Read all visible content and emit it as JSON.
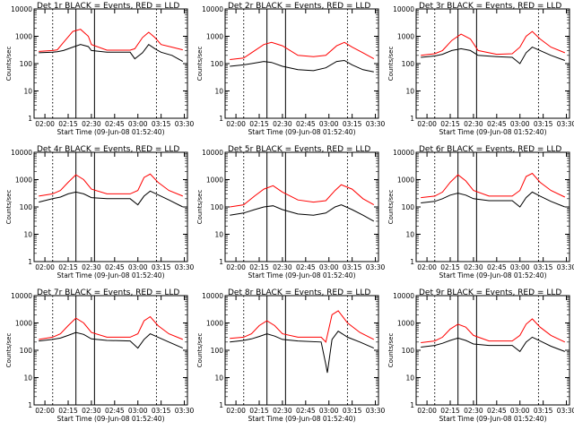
{
  "chart_data": [
    {
      "type": "line",
      "title": "Det 1r BLACK = Events, RED = LLD",
      "ylabel": "Counts/sec",
      "xlabel": "Start Time (09-Jun-08 01:52:40)",
      "x_ticks": [
        "02:00",
        "02:15",
        "02:30",
        "02:45",
        "03:00",
        "03:15",
        "03:30"
      ],
      "y_ticks": [
        "1",
        "10",
        "100",
        "1000",
        "10000"
      ],
      "ylim": [
        1,
        10000
      ],
      "y_scale": "log",
      "series": [
        {
          "name": "RED = LLD",
          "color": "#ff0000",
          "x": [
            "01:56",
            "02:05",
            "02:08",
            "02:12",
            "02:18",
            "02:23",
            "02:28",
            "02:30",
            "02:40",
            "02:55",
            "02:58",
            "03:03",
            "03:07",
            "03:11",
            "03:15",
            "03:22",
            "03:29"
          ],
          "values": [
            280,
            300,
            320,
            600,
            1500,
            1800,
            1000,
            500,
            310,
            310,
            350,
            900,
            1400,
            900,
            500,
            400,
            320
          ]
        },
        {
          "name": "BLACK = Events",
          "color": "#000000",
          "x": [
            "01:56",
            "02:05",
            "02:08",
            "02:12",
            "02:18",
            "02:23",
            "02:28",
            "02:30",
            "02:40",
            "02:55",
            "02:58",
            "03:03",
            "03:07",
            "03:11",
            "03:15",
            "03:22",
            "03:29"
          ],
          "values": [
            250,
            260,
            270,
            300,
            400,
            500,
            420,
            300,
            260,
            260,
            150,
            250,
            500,
            350,
            260,
            200,
            120
          ]
        }
      ]
    },
    {
      "type": "line",
      "title": "Det 2r BLACK = Events, RED = LLD",
      "ylabel": "Counts/sec",
      "xlabel": "Start Time (09-Jun-08 01:52:40)",
      "x_ticks": [
        "02:00",
        "02:15",
        "02:30",
        "02:45",
        "03:00",
        "03:15",
        "03:30"
      ],
      "y_ticks": [
        "1",
        "10",
        "100",
        "1000",
        "10000"
      ],
      "ylim": [
        1,
        10000
      ],
      "y_scale": "log",
      "series": [
        {
          "name": "RED = LLD",
          "color": "#ff0000",
          "x": [
            "01:56",
            "02:05",
            "02:10",
            "02:18",
            "02:23",
            "02:30",
            "02:40",
            "02:50",
            "02:58",
            "03:05",
            "03:10",
            "03:15",
            "03:22",
            "03:29"
          ],
          "values": [
            140,
            160,
            250,
            500,
            600,
            450,
            200,
            180,
            200,
            450,
            600,
            400,
            250,
            150
          ]
        },
        {
          "name": "BLACK = Events",
          "color": "#000000",
          "x": [
            "01:56",
            "02:05",
            "02:10",
            "02:18",
            "02:23",
            "02:30",
            "02:40",
            "02:50",
            "02:58",
            "03:05",
            "03:10",
            "03:15",
            "03:22",
            "03:29"
          ],
          "values": [
            80,
            90,
            100,
            120,
            110,
            80,
            60,
            55,
            70,
            120,
            130,
            90,
            60,
            50
          ]
        }
      ]
    },
    {
      "type": "line",
      "title": "Det 3r BLACK = Events, RED = LLD",
      "ylabel": "Counts/sec",
      "xlabel": "Start Time (09-Jun-08 01:52:40)",
      "x_ticks": [
        "02:00",
        "02:15",
        "02:30",
        "02:45",
        "03:00",
        "03:15",
        "03:30"
      ],
      "y_ticks": [
        "1",
        "10",
        "100",
        "1000",
        "10000"
      ],
      "ylim": [
        1,
        10000
      ],
      "y_scale": "log",
      "series": [
        {
          "name": "RED = LLD",
          "color": "#ff0000",
          "x": [
            "01:56",
            "02:05",
            "02:10",
            "02:16",
            "02:22",
            "02:28",
            "02:33",
            "02:45",
            "02:55",
            "03:00",
            "03:04",
            "03:08",
            "03:13",
            "03:20",
            "03:29"
          ],
          "values": [
            200,
            230,
            300,
            700,
            1200,
            800,
            300,
            220,
            230,
            400,
            1000,
            1500,
            800,
            400,
            250
          ]
        },
        {
          "name": "BLACK = Events",
          "color": "#000000",
          "x": [
            "01:56",
            "02:05",
            "02:10",
            "02:16",
            "02:22",
            "02:28",
            "02:33",
            "02:45",
            "02:55",
            "03:00",
            "03:04",
            "03:08",
            "03:13",
            "03:20",
            "03:29"
          ],
          "values": [
            170,
            190,
            220,
            300,
            350,
            300,
            200,
            180,
            170,
            100,
            250,
            400,
            300,
            200,
            130
          ]
        }
      ]
    },
    {
      "type": "line",
      "title": "Det 4r BLACK = Events, RED = LLD",
      "ylabel": "Counts/sec",
      "xlabel": "Start Time (09-Jun-08 01:52:40)",
      "x_ticks": [
        "02:00",
        "02:15",
        "02:30",
        "02:45",
        "03:00",
        "03:15",
        "03:30"
      ],
      "y_ticks": [
        "1",
        "10",
        "100",
        "1000",
        "10000"
      ],
      "ylim": [
        1,
        10000
      ],
      "y_scale": "log",
      "series": [
        {
          "name": "RED = LLD",
          "color": "#ff0000",
          "x": [
            "01:56",
            "02:05",
            "02:10",
            "02:15",
            "02:20",
            "02:25",
            "02:30",
            "02:40",
            "02:55",
            "03:00",
            "03:04",
            "03:08",
            "03:13",
            "03:20",
            "03:29"
          ],
          "values": [
            250,
            300,
            400,
            800,
            1500,
            1000,
            450,
            300,
            300,
            400,
            1200,
            1600,
            800,
            400,
            250
          ]
        },
        {
          "name": "BLACK = Events",
          "color": "#000000",
          "x": [
            "01:56",
            "02:05",
            "02:10",
            "02:15",
            "02:20",
            "02:25",
            "02:30",
            "02:40",
            "02:55",
            "03:00",
            "03:04",
            "03:08",
            "03:13",
            "03:20",
            "03:29"
          ],
          "values": [
            150,
            200,
            230,
            300,
            350,
            300,
            220,
            200,
            200,
            120,
            250,
            380,
            280,
            180,
            100
          ]
        }
      ]
    },
    {
      "type": "line",
      "title": "Det 5r BLACK = Events, RED = LLD",
      "ylabel": "Counts/sec",
      "xlabel": "Start Time (09-Jun-08 01:52:40)",
      "x_ticks": [
        "02:00",
        "02:15",
        "02:30",
        "02:45",
        "03:00",
        "03:15",
        "03:30"
      ],
      "y_ticks": [
        "1",
        "10",
        "100",
        "1000",
        "10000"
      ],
      "ylim": [
        1,
        10000
      ],
      "y_scale": "log",
      "series": [
        {
          "name": "RED = LLD",
          "color": "#ff0000",
          "x": [
            "01:56",
            "02:05",
            "02:12",
            "02:18",
            "02:24",
            "02:30",
            "02:40",
            "02:50",
            "02:58",
            "03:04",
            "03:08",
            "03:15",
            "03:22",
            "03:29"
          ],
          "values": [
            100,
            120,
            250,
            450,
            600,
            350,
            180,
            150,
            170,
            400,
            650,
            450,
            200,
            120
          ]
        },
        {
          "name": "BLACK = Events",
          "color": "#000000",
          "x": [
            "01:56",
            "02:05",
            "02:12",
            "02:18",
            "02:24",
            "02:30",
            "02:40",
            "02:50",
            "02:58",
            "03:04",
            "03:08",
            "03:15",
            "03:22",
            "03:29"
          ],
          "values": [
            50,
            60,
            80,
            100,
            110,
            80,
            55,
            50,
            60,
            100,
            120,
            80,
            50,
            30
          ]
        }
      ]
    },
    {
      "type": "line",
      "title": "Det 6r BLACK = Events, RED = LLD",
      "ylabel": "Counts/sec",
      "xlabel": "Start Time (09-Jun-08 01:52:40)",
      "x_ticks": [
        "02:00",
        "02:15",
        "02:30",
        "02:45",
        "03:00",
        "03:15",
        "03:30"
      ],
      "y_ticks": [
        "1",
        "10",
        "100",
        "1000",
        "10000"
      ],
      "ylim": [
        1,
        10000
      ],
      "y_scale": "log",
      "series": [
        {
          "name": "RED = LLD",
          "color": "#ff0000",
          "x": [
            "01:56",
            "02:05",
            "02:10",
            "02:15",
            "02:20",
            "02:25",
            "02:30",
            "02:40",
            "02:55",
            "03:00",
            "03:04",
            "03:08",
            "03:13",
            "03:20",
            "03:29"
          ],
          "values": [
            220,
            250,
            350,
            800,
            1500,
            900,
            400,
            250,
            250,
            400,
            1300,
            1700,
            800,
            400,
            230
          ]
        },
        {
          "name": "BLACK = Events",
          "color": "#000000",
          "x": [
            "01:56",
            "02:05",
            "02:10",
            "02:15",
            "02:20",
            "02:25",
            "02:30",
            "02:40",
            "02:55",
            "03:00",
            "03:04",
            "03:08",
            "03:13",
            "03:20",
            "03:29"
          ],
          "values": [
            140,
            160,
            200,
            270,
            320,
            270,
            200,
            170,
            170,
            100,
            220,
            350,
            250,
            160,
            100
          ]
        }
      ]
    },
    {
      "type": "line",
      "title": "Det 7r BLACK = Events, RED = LLD",
      "ylabel": "Counts/sec",
      "xlabel": "Start Time (09-Jun-08 01:52:40)",
      "x_ticks": [
        "02:00",
        "02:15",
        "02:30",
        "02:45",
        "03:00",
        "03:15",
        "03:30"
      ],
      "y_ticks": [
        "1",
        "10",
        "100",
        "1000",
        "10000"
      ],
      "ylim": [
        1,
        10000
      ],
      "y_scale": "log",
      "series": [
        {
          "name": "RED = LLD",
          "color": "#ff0000",
          "x": [
            "01:56",
            "02:05",
            "02:10",
            "02:15",
            "02:20",
            "02:25",
            "02:30",
            "02:40",
            "02:55",
            "03:00",
            "03:04",
            "03:08",
            "03:13",
            "03:20",
            "03:29"
          ],
          "values": [
            250,
            300,
            400,
            800,
            1500,
            1000,
            450,
            300,
            300,
            400,
            1200,
            1700,
            800,
            400,
            250
          ]
        },
        {
          "name": "BLACK = Events",
          "color": "#000000",
          "x": [
            "01:56",
            "02:05",
            "02:10",
            "02:15",
            "02:20",
            "02:25",
            "02:30",
            "02:40",
            "02:55",
            "03:00",
            "03:04",
            "03:08",
            "03:13",
            "03:20",
            "03:29"
          ],
          "values": [
            220,
            250,
            280,
            350,
            450,
            380,
            260,
            230,
            220,
            120,
            250,
            400,
            300,
            200,
            120
          ]
        }
      ]
    },
    {
      "type": "line",
      "title": "Det 8r BLACK = Events, RED = LLD",
      "ylabel": "Counts/sec",
      "xlabel": "Start Time (09-Jun-08 01:52:40)",
      "x_ticks": [
        "02:00",
        "02:15",
        "02:30",
        "02:45",
        "03:00",
        "03:15",
        "03:30"
      ],
      "y_ticks": [
        "1",
        "10",
        "100",
        "1000",
        "10000"
      ],
      "ylim": [
        1,
        10000
      ],
      "y_scale": "log",
      "series": [
        {
          "name": "RED = LLD",
          "color": "#ff0000",
          "x": [
            "01:56",
            "02:05",
            "02:10",
            "02:15",
            "02:20",
            "02:25",
            "02:30",
            "02:40",
            "02:55",
            "02:58",
            "03:02",
            "03:06",
            "03:12",
            "03:20",
            "03:29"
          ],
          "values": [
            270,
            300,
            400,
            800,
            1200,
            800,
            400,
            300,
            300,
            200,
            2000,
            2800,
            1000,
            450,
            250
          ]
        },
        {
          "name": "BLACK = Events",
          "color": "#000000",
          "x": [
            "01:56",
            "02:05",
            "02:10",
            "02:15",
            "02:20",
            "02:25",
            "02:30",
            "02:40",
            "02:55",
            "02:58",
            "02:59",
            "03:02",
            "03:06",
            "03:12",
            "03:20",
            "03:29"
          ],
          "values": [
            200,
            230,
            260,
            320,
            400,
            330,
            250,
            220,
            200,
            30,
            15,
            250,
            500,
            300,
            200,
            120
          ]
        }
      ]
    },
    {
      "type": "line",
      "title": "Det 9r BLACK = Events, RED = LLD",
      "ylabel": "Counts/sec",
      "xlabel": "Start Time (09-Jun-08 01:52:40)",
      "x_ticks": [
        "02:00",
        "02:15",
        "02:30",
        "02:45",
        "03:00",
        "03:15",
        "03:30"
      ],
      "y_ticks": [
        "1",
        "10",
        "100",
        "1000",
        "10000"
      ],
      "ylim": [
        1,
        10000
      ],
      "y_scale": "log",
      "series": [
        {
          "name": "RED = LLD",
          "color": "#ff0000",
          "x": [
            "01:56",
            "02:05",
            "02:10",
            "02:15",
            "02:20",
            "02:25",
            "02:30",
            "02:40",
            "02:55",
            "03:00",
            "03:04",
            "03:08",
            "03:13",
            "03:20",
            "03:29"
          ],
          "values": [
            190,
            220,
            300,
            600,
            900,
            700,
            350,
            220,
            220,
            350,
            900,
            1400,
            700,
            350,
            200
          ]
        },
        {
          "name": "BLACK = Events",
          "color": "#000000",
          "x": [
            "01:56",
            "02:05",
            "02:10",
            "02:15",
            "02:20",
            "02:25",
            "02:30",
            "02:40",
            "02:55",
            "03:00",
            "03:04",
            "03:08",
            "03:13",
            "03:20",
            "03:29"
          ],
          "values": [
            130,
            150,
            180,
            230,
            280,
            230,
            170,
            150,
            150,
            90,
            200,
            300,
            220,
            140,
            90
          ]
        }
      ]
    }
  ]
}
